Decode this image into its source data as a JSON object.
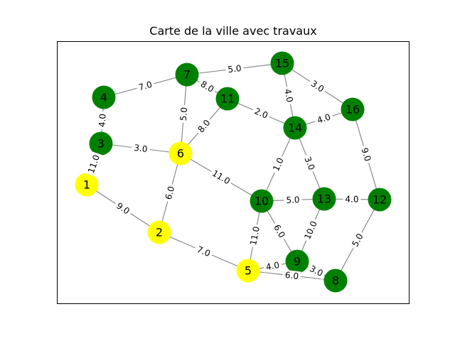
{
  "title": "Carte de la ville avec travaux",
  "colors": {
    "normal": "#008000",
    "works": "#ffff00",
    "edge": "#808080"
  },
  "nodes": [
    {
      "id": "1",
      "status": "works"
    },
    {
      "id": "2",
      "status": "works"
    },
    {
      "id": "3",
      "status": "normal"
    },
    {
      "id": "4",
      "status": "normal"
    },
    {
      "id": "5",
      "status": "works"
    },
    {
      "id": "6",
      "status": "works"
    },
    {
      "id": "7",
      "status": "normal"
    },
    {
      "id": "8",
      "status": "normal"
    },
    {
      "id": "9",
      "status": "normal"
    },
    {
      "id": "10",
      "status": "normal"
    },
    {
      "id": "11",
      "status": "normal"
    },
    {
      "id": "12",
      "status": "normal"
    },
    {
      "id": "13",
      "status": "normal"
    },
    {
      "id": "14",
      "status": "normal"
    },
    {
      "id": "15",
      "status": "normal"
    },
    {
      "id": "16",
      "status": "normal"
    }
  ],
  "edges": [
    {
      "from": "4",
      "to": "7",
      "weight": "7.0"
    },
    {
      "from": "7",
      "to": "15",
      "weight": "5.0"
    },
    {
      "from": "15",
      "to": "16",
      "weight": "3.0"
    },
    {
      "from": "15",
      "to": "14",
      "weight": "4.0"
    },
    {
      "from": "7",
      "to": "11",
      "weight": "8.0"
    },
    {
      "from": "7",
      "to": "6",
      "weight": "5.0"
    },
    {
      "from": "4",
      "to": "3",
      "weight": "4.0"
    },
    {
      "from": "11",
      "to": "14",
      "weight": "2.0"
    },
    {
      "from": "11",
      "to": "6",
      "weight": "8.0"
    },
    {
      "from": "14",
      "to": "16",
      "weight": "4.0"
    },
    {
      "from": "3",
      "to": "6",
      "weight": "3.0"
    },
    {
      "from": "3",
      "to": "1",
      "weight": "11.0"
    },
    {
      "from": "6",
      "to": "10",
      "weight": "11.0"
    },
    {
      "from": "6",
      "to": "2",
      "weight": "6.0"
    },
    {
      "from": "14",
      "to": "10",
      "weight": "1.0"
    },
    {
      "from": "14",
      "to": "13",
      "weight": "3.0"
    },
    {
      "from": "16",
      "to": "12",
      "weight": "9.0"
    },
    {
      "from": "1",
      "to": "2",
      "weight": "9.0"
    },
    {
      "from": "10",
      "to": "13",
      "weight": "5.0"
    },
    {
      "from": "13",
      "to": "12",
      "weight": "4.0"
    },
    {
      "from": "10",
      "to": "5",
      "weight": "11.0"
    },
    {
      "from": "10",
      "to": "9",
      "weight": "6.0"
    },
    {
      "from": "13",
      "to": "9",
      "weight": "10.0"
    },
    {
      "from": "12",
      "to": "8",
      "weight": "5.0"
    },
    {
      "from": "2",
      "to": "5",
      "weight": "7.0"
    },
    {
      "from": "5",
      "to": "9",
      "weight": "4.0"
    },
    {
      "from": "9",
      "to": "8",
      "weight": "3.0"
    },
    {
      "from": "5",
      "to": "8",
      "weight": "6.0"
    }
  ]
}
